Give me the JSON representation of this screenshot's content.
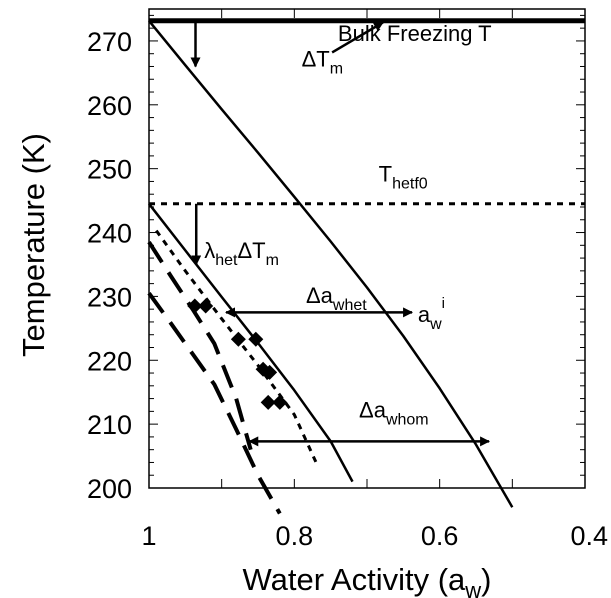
{
  "chart_data": {
    "type": "line",
    "title": "",
    "xlabel": "Water Activity (a",
    "xlabel_sub": "w",
    "xlabel_end": ")",
    "ylabel": "Temperature (K)",
    "xlim": [
      1,
      0.4
    ],
    "ylim": [
      200,
      275
    ],
    "x_reversed": true,
    "xticks": [
      1,
      0.8,
      0.6,
      0.4
    ],
    "xtick_labels": [
      "1",
      "0.8",
      "0.6",
      "0.4"
    ],
    "yticks": [
      200,
      210,
      220,
      230,
      240,
      250,
      260,
      270
    ],
    "ytick_labels": [
      "200",
      "210",
      "220",
      "230",
      "240",
      "250",
      "260",
      "270"
    ],
    "grid": false,
    "legend": "none",
    "series": [
      {
        "style": "thick-solid",
        "x": [
          1.0,
          0.4
        ],
        "y": [
          273.15,
          273.15
        ]
      },
      {
        "style": "dotted",
        "x": [
          1.0,
          0.4
        ],
        "y": [
          244.5,
          244.5
        ]
      },
      {
        "style": "solid",
        "x": [
          1.0,
          0.95,
          0.9,
          0.85,
          0.8,
          0.75,
          0.7,
          0.65,
          0.6,
          0.55,
          0.5
        ],
        "y": [
          273.15,
          266.2,
          259.3,
          252.5,
          245.6,
          238.6,
          231.4,
          223.8,
          215.6,
          206.8,
          197.0
        ]
      },
      {
        "style": "solid",
        "x": [
          1.0,
          0.95,
          0.9,
          0.85,
          0.8,
          0.75,
          0.72
        ],
        "y": [
          244.5,
          237.2,
          229.9,
          222.7,
          215.3,
          207.3,
          201.0
        ]
      },
      {
        "style": "dotted",
        "x": [
          0.99,
          0.95,
          0.9,
          0.85,
          0.8,
          0.77
        ],
        "y": [
          240.3,
          234.0,
          226.5,
          219.2,
          211.5,
          204.0
        ]
      },
      {
        "style": "dashed",
        "x": [
          1.0,
          0.97,
          0.94,
          0.91,
          0.88,
          0.85,
          0.82
        ],
        "y": [
          230.5,
          225.8,
          221.0,
          216.2,
          209.2,
          202.0,
          196.0
        ]
      },
      {
        "style": "dashed",
        "x": [
          1.0,
          0.97,
          0.94,
          0.91,
          0.88,
          0.86
        ],
        "y": [
          238.5,
          233.2,
          228.0,
          222.6,
          214.0,
          206.0
        ]
      },
      {
        "type": "scatter",
        "marker": "diamond",
        "x": [
          0.937,
          0.922,
          0.877,
          0.853,
          0.843,
          0.834,
          0.836,
          0.82
        ],
        "y": [
          228.5,
          228.5,
          223.3,
          223.3,
          218.6,
          218.1,
          213.4,
          213.4
        ]
      }
    ],
    "annotations": [
      {
        "parts": [
          [
            "ΔT",
            ""
          ],
          [
            "m",
            "sub"
          ]
        ],
        "x": 0.79,
        "y": 266
      },
      {
        "parts": [
          [
            "Bulk Freezing T",
            ""
          ]
        ],
        "x": 0.74,
        "y": 270
      },
      {
        "parts": [
          [
            "T",
            ""
          ],
          [
            "hetf0",
            "sub"
          ]
        ],
        "x": 0.684,
        "y": 248
      },
      {
        "parts": [
          [
            "λ",
            ""
          ],
          [
            "het",
            "sub"
          ],
          [
            "ΔT",
            ""
          ],
          [
            "m",
            "sub"
          ]
        ],
        "x": 0.924,
        "y": 236
      },
      {
        "parts": [
          [
            "Δa",
            ""
          ],
          [
            "whet",
            "sub"
          ]
        ],
        "x": 0.784,
        "y": 229
      },
      {
        "parts": [
          [
            "a",
            ""
          ],
          [
            "w",
            "sub"
          ],
          [
            "i",
            "sup"
          ]
        ],
        "x": 0.63,
        "y": 226
      },
      {
        "parts": [
          [
            "Δa",
            ""
          ],
          [
            "whom",
            "sub"
          ]
        ],
        "x": 0.711,
        "y": 211
      }
    ],
    "arrows": [
      {
        "label": "ΔT_m",
        "x1": 0.936,
        "y1": 273.15,
        "x2": 0.936,
        "y2": 266.0
      },
      {
        "label": "Bulk Freezing T",
        "x1": 0.748,
        "y1": 268.2,
        "x2": 0.678,
        "y2": 272.9
      },
      {
        "label": "λ_het ΔT_m",
        "x1": 0.935,
        "y1": 244.5,
        "x2": 0.935,
        "y2": 235.0
      },
      {
        "label": "Δa_whet",
        "x1": 0.894,
        "y1": 227.5,
        "x2": 0.638,
        "y2": 227.5,
        "double": true
      },
      {
        "label": "Δa_whom",
        "x1": 0.862,
        "y1": 207.3,
        "x2": 0.532,
        "y2": 207.3,
        "double": true
      }
    ]
  }
}
